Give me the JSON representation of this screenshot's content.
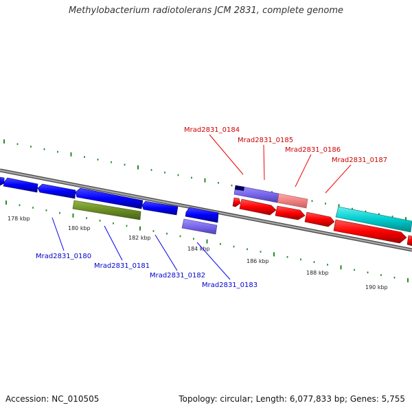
{
  "title": "Methylobacterium radiotolerans JCM 2831, complete genome",
  "footer": {
    "accession": "Accession: NC_010505",
    "summary": "Topology: circular; Length: 6,077,833 bp; Genes: 5,755"
  },
  "scale": {
    "tick_labels": [
      "178 kbp",
      "180 kbp",
      "182 kbp",
      "184 kbp",
      "186 kbp",
      "188 kbp",
      "190 kbp"
    ]
  },
  "genes_forward": [
    {
      "label": "Mrad2831_0184"
    },
    {
      "label": "Mrad2831_0185"
    },
    {
      "label": "Mrad2831_0186"
    },
    {
      "label": "Mrad2831_0187"
    }
  ],
  "genes_reverse": [
    {
      "label": "Mrad2831_0180"
    },
    {
      "label": "Mrad2831_0181"
    },
    {
      "label": "Mrad2831_0182"
    },
    {
      "label": "Mrad2831_0183"
    }
  ],
  "colors": {
    "forward_label": "#cc0000",
    "reverse_label": "#0000cc",
    "forward_cds": "#ff0000",
    "reverse_cds": "#0000ff",
    "rna": "#6b8e23",
    "pseudo": "#7b68ee",
    "cyan_feature": "#00cccc",
    "ticks": "#228b22",
    "backbone": "#808080"
  }
}
